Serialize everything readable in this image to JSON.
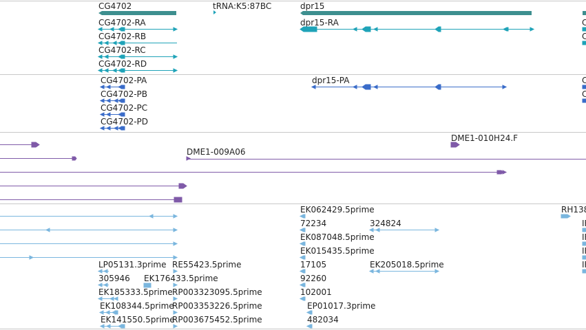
{
  "colors": {
    "gene": "#3d8f8f",
    "transcript": "#1fa3b8",
    "protein": "#3a6cc9",
    "clone": "#7f5aa8",
    "est": "#7ab6de",
    "separator": "#c8c8c8",
    "label": "#222222"
  },
  "tracks": {
    "genes": {
      "labels": [
        "CG4702",
        "tRNA:K5:87BC",
        "dpr15"
      ]
    },
    "transcripts": {
      "labels": [
        "CG4702-RA",
        "CG4702-RB",
        "CG4702-RC",
        "CG4702-RD",
        "dpr15-RA"
      ],
      "edge_cut_labels": [
        "C",
        "C"
      ]
    },
    "proteins": {
      "labels": [
        "CG4702-PA",
        "CG4702-PB",
        "CG4702-PC",
        "CG4702-PD",
        "dpr15-PA"
      ],
      "edge_cut_labels": [
        "C",
        "C"
      ]
    },
    "clones": {
      "labels": [
        "DME1-010H24.F",
        "DME1-009A06"
      ]
    },
    "ests": {
      "labels": [
        "EK062429.5prime",
        "RH138",
        "72234",
        "324824",
        "IF",
        "EK087048.5prime",
        "IF",
        "EK015435.5prime",
        "IF",
        "LP05131.3prime",
        "RE55423.5prime",
        "17105",
        "EK205018.5prime",
        "IF",
        "305946",
        "EK176433.5prime",
        "92260",
        "EK185333.5prime",
        "RP003323095.5prime",
        "102001",
        "EK108344.5prime",
        "RP003353226.5prime",
        "EP01017.3prime",
        "EK141550.5prime",
        "RP003675452.5prime",
        "482034"
      ]
    }
  }
}
